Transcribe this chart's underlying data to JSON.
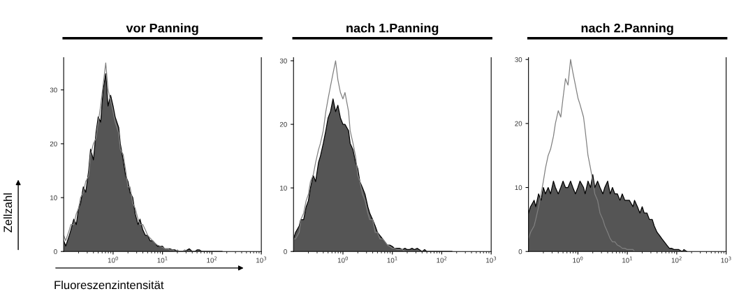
{
  "chart_data": [
    {
      "type": "area",
      "title": "vor Panning",
      "xlabel": "Fluoreszenzintensität",
      "ylabel": "Zellzahl",
      "log": "x",
      "xlim": [
        0.1,
        1000
      ],
      "xticks": [
        {
          "value": 1,
          "label": "10$^{0}$"
        },
        {
          "value": 10,
          "label": "10$^{1}$"
        },
        {
          "value": 100,
          "label": "10$^{2}$"
        },
        {
          "value": 1000,
          "label": "10$^{3}$"
        }
      ],
      "ylim": [
        0,
        36
      ],
      "yticks": [
        0,
        10,
        20,
        30
      ],
      "grid": false,
      "legend": false,
      "x": [
        0.1,
        0.11,
        0.13,
        0.14,
        0.16,
        0.18,
        0.2,
        0.22,
        0.25,
        0.28,
        0.32,
        0.35,
        0.4,
        0.45,
        0.5,
        0.56,
        0.63,
        0.71,
        0.79,
        0.89,
        1,
        1.1,
        1.3,
        1.4,
        1.6,
        1.8,
        2,
        2.2,
        2.5,
        2.8,
        3.2,
        3.5,
        4,
        4.5,
        5,
        5.6,
        6.3,
        7.1,
        7.9,
        8.9,
        10,
        11,
        13,
        14,
        16,
        18,
        20,
        22,
        25,
        28,
        32,
        35,
        40,
        45,
        50,
        56,
        63,
        71,
        79,
        89,
        100,
        110,
        130,
        140,
        160
      ],
      "series": [
        {
          "color": "#555555",
          "values": [
            2,
            1,
            3,
            4,
            6,
            5,
            8,
            9,
            12,
            11,
            15,
            19,
            17,
            22,
            25,
            24,
            30,
            33,
            27,
            29,
            27,
            25,
            23,
            20,
            17,
            14,
            13,
            11,
            10,
            7,
            5,
            6,
            4,
            3,
            3,
            2,
            2,
            1.5,
            1,
            1,
            1,
            0.5,
            0.5,
            0.5,
            0.3,
            0.3,
            0,
            0,
            0,
            0,
            0.3,
            0.5,
            0,
            0,
            0.3,
            0.3,
            0,
            0,
            0,
            0,
            0,
            0,
            0,
            0,
            0
          ]
        },
        {
          "type": "line",
          "color": "#808080",
          "values": [
            3,
            2,
            4,
            5,
            5,
            7,
            8,
            10,
            11,
            13,
            14,
            18,
            20,
            21,
            24,
            27,
            31,
            35,
            30,
            28,
            26,
            24,
            22,
            19,
            18,
            15,
            12,
            12,
            9,
            8,
            6,
            5,
            5,
            4,
            3,
            2.5,
            2,
            1.5,
            1.2,
            1,
            0.8,
            0.5,
            0.5,
            0.3,
            0.3,
            0,
            0.3,
            0,
            0,
            0.3,
            0,
            0,
            0,
            0,
            0,
            0,
            0,
            0,
            0,
            0,
            0,
            0,
            0,
            0,
            0
          ]
        }
      ]
    },
    {
      "type": "area",
      "title": "nach 1.Panning",
      "log": "x",
      "xlim": [
        0.1,
        1000
      ],
      "xticks": [
        {
          "value": 1,
          "label": "10$^{0}$"
        },
        {
          "value": 10,
          "label": "10$^{1}$"
        },
        {
          "value": 100,
          "label": "10$^{2}$"
        },
        {
          "value": 1000,
          "label": "10$^{3}$"
        }
      ],
      "ylim": [
        0,
        30.5
      ],
      "yticks": [
        0,
        10,
        20,
        30
      ],
      "grid": false,
      "legend": false,
      "x": [
        0.1,
        0.11,
        0.13,
        0.14,
        0.16,
        0.18,
        0.2,
        0.22,
        0.25,
        0.28,
        0.32,
        0.35,
        0.4,
        0.45,
        0.5,
        0.56,
        0.63,
        0.71,
        0.79,
        0.89,
        1,
        1.1,
        1.3,
        1.4,
        1.6,
        1.8,
        2,
        2.2,
        2.5,
        2.8,
        3.2,
        3.5,
        4,
        4.5,
        5,
        5.6,
        6.3,
        7.1,
        7.9,
        8.9,
        10,
        11,
        13,
        14,
        16,
        18,
        20,
        22,
        25,
        28,
        32,
        35,
        40,
        45,
        50,
        56,
        63,
        71,
        79,
        89,
        100,
        110,
        130,
        140,
        160
      ],
      "series": [
        {
          "color": "#555555",
          "values": [
            2,
            3,
            4,
            5,
            5,
            7,
            8,
            10,
            12,
            11,
            14,
            15,
            17,
            19,
            21,
            22,
            24,
            22,
            23,
            21,
            20,
            20,
            19,
            17,
            16,
            14,
            13,
            11,
            10,
            9,
            7,
            6,
            5,
            4,
            3,
            2.5,
            2,
            1.5,
            1,
            1,
            0.8,
            0.5,
            0.5,
            0.5,
            0.3,
            0.5,
            0.3,
            0.3,
            0.5,
            0.3,
            0.5,
            0.3,
            0,
            0.3,
            0,
            0,
            0,
            0,
            0,
            0,
            0,
            0,
            0,
            0,
            0
          ]
        },
        {
          "type": "line",
          "color": "#808080",
          "values": [
            2,
            2,
            3,
            5,
            6,
            8,
            9,
            11,
            12,
            14,
            16,
            17,
            19,
            22,
            24,
            26,
            28,
            30,
            27,
            25,
            24,
            25,
            22,
            19,
            17,
            15,
            12,
            11,
            9,
            8,
            6,
            5,
            5,
            3,
            3,
            2,
            2,
            1.5,
            1,
            0.8,
            0.5,
            0.5,
            0.3,
            0.3,
            0.3,
            0,
            0,
            0,
            0,
            0,
            0,
            0,
            0,
            0,
            0,
            0,
            0,
            0,
            0,
            0,
            0,
            0,
            0,
            0,
            0
          ]
        }
      ]
    },
    {
      "type": "area",
      "title": "nach 2.Panning",
      "log": "x",
      "xlim": [
        0.1,
        1000
      ],
      "xticks": [
        {
          "value": 1,
          "label": "10$^{0}$"
        },
        {
          "value": 10,
          "label": "10$^{1}$"
        },
        {
          "value": 100,
          "label": "10$^{2}$"
        },
        {
          "value": 1000,
          "label": "10$^{3}$"
        }
      ],
      "ylim": [
        0,
        30.3
      ],
      "yticks": [
        0,
        10,
        20,
        30
      ],
      "grid": false,
      "legend": false,
      "x": [
        0.1,
        0.11,
        0.13,
        0.14,
        0.16,
        0.18,
        0.2,
        0.22,
        0.25,
        0.28,
        0.32,
        0.35,
        0.4,
        0.45,
        0.5,
        0.56,
        0.63,
        0.71,
        0.79,
        0.89,
        1,
        1.1,
        1.3,
        1.4,
        1.6,
        1.8,
        2,
        2.2,
        2.5,
        2.8,
        3.2,
        3.5,
        4,
        4.5,
        5,
        5.6,
        6.3,
        7.1,
        7.9,
        8.9,
        10,
        11,
        13,
        14,
        16,
        18,
        20,
        22,
        25,
        28,
        32,
        35,
        40,
        45,
        50,
        56,
        63,
        71,
        79,
        89,
        100,
        110,
        130,
        140,
        160
      ],
      "series": [
        {
          "color": "#555555",
          "values": [
            6,
            7,
            8,
            7,
            9,
            8,
            10,
            9,
            10,
            9,
            11,
            10,
            9,
            10,
            11,
            10,
            10,
            11,
            10,
            9,
            10,
            11,
            10,
            9,
            11,
            10,
            12,
            10,
            11,
            10,
            9,
            10,
            11,
            9,
            10,
            9,
            9,
            8,
            9,
            8,
            8,
            8,
            7,
            8,
            7,
            6,
            7,
            6,
            6,
            5,
            5,
            4,
            3,
            2.5,
            2,
            1.5,
            1,
            0.5,
            0.5,
            0.3,
            0.3,
            0.3,
            0,
            0.3,
            0
          ]
        },
        {
          "type": "line",
          "color": "#808080",
          "values": [
            2,
            3,
            4,
            5,
            7,
            9,
            11,
            13,
            15,
            16,
            18,
            20,
            22,
            21,
            24,
            27,
            26,
            30,
            28,
            26,
            24,
            23,
            21,
            19,
            15,
            13,
            11,
            9,
            8,
            6,
            5,
            4,
            3,
            2,
            1.5,
            1.5,
            1,
            0.8,
            0.5,
            0.5,
            0.3,
            0.3,
            0.3,
            0,
            0,
            0,
            0,
            0,
            0,
            0,
            0,
            0,
            0,
            0,
            0,
            0,
            0,
            0,
            0,
            0,
            0,
            0,
            0,
            0,
            0
          ]
        }
      ]
    }
  ]
}
